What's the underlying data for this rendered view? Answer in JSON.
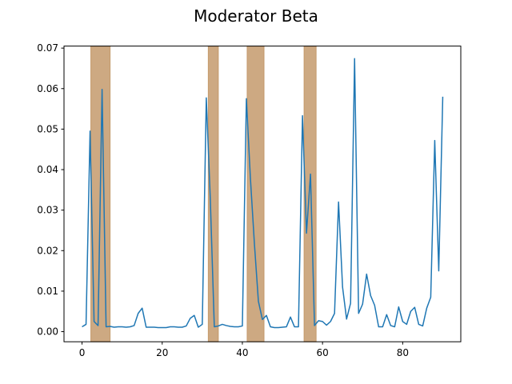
{
  "chart_data": {
    "type": "line",
    "title": "Moderator Beta",
    "xlabel": "",
    "ylabel": "",
    "xlim": [
      -4.5,
      94.5
    ],
    "ylim": [
      -0.0025,
      0.0705
    ],
    "xticks": [
      0,
      20,
      40,
      60,
      80
    ],
    "yticks": [
      0.0,
      0.01,
      0.02,
      0.03,
      0.04,
      0.05,
      0.06,
      0.07
    ],
    "ytick_labels": [
      "0.00",
      "0.01",
      "0.02",
      "0.03",
      "0.04",
      "0.05",
      "0.06",
      "0.07"
    ],
    "grid": false,
    "line_color": "#1f77b4",
    "band_color": "#c49a6c",
    "shaded_ranges": [
      [
        2.2,
        7.0
      ],
      [
        31.5,
        34.0
      ],
      [
        41.2,
        45.4
      ],
      [
        55.4,
        58.4
      ]
    ],
    "series": [
      {
        "x": [
          0,
          1,
          2,
          3,
          4,
          5,
          6,
          7,
          8,
          9,
          10,
          11,
          12,
          13,
          14,
          15,
          16,
          17,
          18,
          19,
          20,
          21,
          22,
          23,
          24,
          25,
          26,
          27,
          28,
          29,
          30,
          31,
          32,
          33,
          34,
          35,
          36,
          37,
          38,
          39,
          40,
          41,
          42,
          43,
          44,
          45,
          46,
          47,
          48,
          49,
          50,
          51,
          52,
          53,
          54,
          55,
          56,
          57,
          58,
          59,
          60,
          61,
          62,
          63,
          64,
          65,
          66,
          67,
          68,
          69,
          70,
          71,
          72,
          73,
          74,
          75,
          76,
          77,
          78,
          79,
          80,
          81,
          82,
          83,
          84,
          85,
          86,
          87,
          88,
          89,
          90
        ],
        "y": [
          0.0012,
          0.0018,
          0.0495,
          0.0025,
          0.0015,
          0.0598,
          0.0012,
          0.0013,
          0.0011,
          0.0012,
          0.0012,
          0.0011,
          0.0012,
          0.0015,
          0.0045,
          0.0058,
          0.0011,
          0.0011,
          0.0011,
          0.001,
          0.001,
          0.001,
          0.0012,
          0.0012,
          0.0011,
          0.0011,
          0.0014,
          0.0033,
          0.004,
          0.0011,
          0.0018,
          0.0577,
          0.0328,
          0.0012,
          0.0014,
          0.0018,
          0.0015,
          0.0013,
          0.0012,
          0.0012,
          0.0014,
          0.0575,
          0.038,
          0.0218,
          0.0075,
          0.003,
          0.004,
          0.0012,
          0.001,
          0.001,
          0.0011,
          0.0012,
          0.0036,
          0.0012,
          0.0012,
          0.0533,
          0.0243,
          0.0389,
          0.0015,
          0.0027,
          0.0025,
          0.0016,
          0.0025,
          0.0045,
          0.032,
          0.011,
          0.0031,
          0.007,
          0.0674,
          0.0045,
          0.0068,
          0.0142,
          0.0089,
          0.0065,
          0.0012,
          0.0012,
          0.0042,
          0.0015,
          0.0012,
          0.0061,
          0.0025,
          0.0018,
          0.005,
          0.006,
          0.0018,
          0.0014,
          0.0058,
          0.0085,
          0.0472,
          0.015,
          0.058
        ]
      }
    ]
  }
}
